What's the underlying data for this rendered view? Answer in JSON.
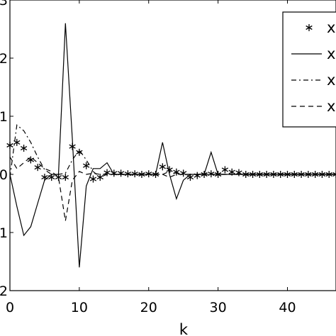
{
  "chart_data": {
    "type": "line",
    "title": "",
    "xlabel": "k",
    "ylabel": "",
    "xlim": [
      0,
      47
    ],
    "ylim": [
      -2,
      3
    ],
    "grid": false,
    "xticks": [
      0,
      10,
      20,
      30,
      40
    ],
    "xtick_labels": [
      "0",
      "10",
      "20",
      "30",
      "40"
    ],
    "yticks": [
      -2,
      -1,
      0,
      1,
      2,
      3
    ],
    "ytick_labels": [
      "2",
      "1",
      "0",
      "1",
      "2",
      "3"
    ],
    "legend": {
      "placement": "top-right",
      "entries": [
        "x",
        "x",
        "x",
        "x"
      ]
    },
    "series": [
      {
        "style": "asterisk",
        "x": [
          0,
          1,
          2,
          3,
          4,
          5,
          6,
          7,
          8,
          9,
          10,
          11,
          12,
          13,
          14,
          15,
          16,
          17,
          18,
          19,
          20,
          21,
          22,
          23,
          24,
          25,
          26,
          27,
          28,
          29,
          30,
          31,
          32,
          33,
          34,
          35,
          36,
          37,
          38,
          39,
          40,
          41,
          42,
          43,
          44,
          45,
          46,
          47
        ],
        "values": [
          0.5,
          0.55,
          0.45,
          0.25,
          0.12,
          -0.05,
          -0.05,
          -0.05,
          -0.05,
          0.48,
          0.38,
          0.15,
          -0.08,
          -0.05,
          0.03,
          0.02,
          0.02,
          0.01,
          0.01,
          0.0,
          0.01,
          0.0,
          0.13,
          0.08,
          0.04,
          0.02,
          -0.05,
          -0.02,
          0.0,
          0.01,
          0.0,
          0.08,
          0.04,
          0.03,
          0.0,
          0.0,
          0.0,
          0.0,
          0.0,
          0.0,
          0.0,
          0.0,
          0.0,
          0.0,
          0.0,
          0.0,
          0.0,
          0.0
        ]
      },
      {
        "style": "solid",
        "x": [
          0,
          1,
          2,
          3,
          4,
          5,
          6,
          7,
          8,
          9,
          10,
          11,
          12,
          13,
          14,
          15,
          16,
          17,
          18,
          19,
          20,
          21,
          22,
          23,
          24,
          25,
          26,
          27,
          28,
          29,
          30,
          31,
          32,
          33,
          34,
          35,
          36,
          37,
          38,
          39,
          40,
          41,
          42,
          43,
          44,
          45,
          46,
          47
        ],
        "values": [
          0.0,
          -0.55,
          -1.05,
          -0.9,
          -0.5,
          -0.1,
          0.0,
          0.0,
          2.6,
          0.6,
          -1.6,
          -0.2,
          0.1,
          0.1,
          0.2,
          0.0,
          0.0,
          0.0,
          0.0,
          0.0,
          0.0,
          0.0,
          0.55,
          0.0,
          -0.42,
          -0.1,
          0.0,
          0.0,
          0.0,
          0.38,
          0.0,
          0.0,
          0.0,
          0.0,
          0.0,
          0.0,
          0.0,
          0.0,
          0.0,
          0.0,
          0.0,
          0.0,
          0.0,
          0.0,
          0.0,
          0.0,
          0.0,
          0.0
        ]
      },
      {
        "style": "dash-dot",
        "x": [
          0,
          1,
          2,
          3,
          4,
          5,
          6,
          7,
          8,
          9,
          10,
          11,
          12,
          13,
          14,
          15,
          16,
          17,
          18,
          19,
          20,
          21,
          22,
          23,
          24,
          25,
          26,
          27,
          28,
          29,
          30,
          31,
          32,
          33,
          34,
          35,
          36,
          37,
          38,
          39,
          40,
          41,
          42,
          43,
          44,
          45,
          46,
          47
        ],
        "values": [
          -0.05,
          0.85,
          0.75,
          0.55,
          0.3,
          0.08,
          0.0,
          0.0,
          0.02,
          0.25,
          0.42,
          0.25,
          0.05,
          -0.05,
          0.0,
          0.0,
          0.0,
          0.0,
          0.0,
          0.0,
          0.0,
          0.0,
          0.0,
          0.05,
          0.02,
          0.0,
          0.0,
          0.0,
          0.0,
          0.0,
          0.0,
          0.0,
          0.0,
          0.0,
          0.0,
          0.0,
          0.0,
          0.0,
          0.0,
          0.0,
          0.0,
          0.0,
          0.0,
          0.0,
          0.0,
          0.0,
          0.0,
          0.0
        ]
      },
      {
        "style": "dashed",
        "x": [
          0,
          1,
          2,
          3,
          4,
          5,
          6,
          7,
          8,
          9,
          10,
          11,
          12,
          13,
          14,
          15,
          16,
          17,
          18,
          19,
          20,
          21,
          22,
          23,
          24,
          25,
          26,
          27,
          28,
          29,
          30,
          31,
          32,
          33,
          34,
          35,
          36,
          37,
          38,
          39,
          40,
          41,
          42,
          43,
          44,
          45,
          46,
          47
        ],
        "values": [
          0.3,
          0.1,
          0.2,
          0.3,
          0.2,
          0.1,
          0.05,
          -0.05,
          -0.8,
          -0.1,
          0.05,
          0.0,
          0.02,
          0.0,
          0.0,
          0.0,
          0.0,
          0.0,
          0.0,
          0.0,
          0.0,
          0.0,
          0.0,
          -0.05,
          0.0,
          0.0,
          0.0,
          0.0,
          0.0,
          0.0,
          0.0,
          0.0,
          0.0,
          0.0,
          0.0,
          0.0,
          0.0,
          0.0,
          0.0,
          0.0,
          0.0,
          0.0,
          0.0,
          0.0,
          0.0,
          0.0,
          0.0,
          0.0
        ]
      }
    ]
  }
}
